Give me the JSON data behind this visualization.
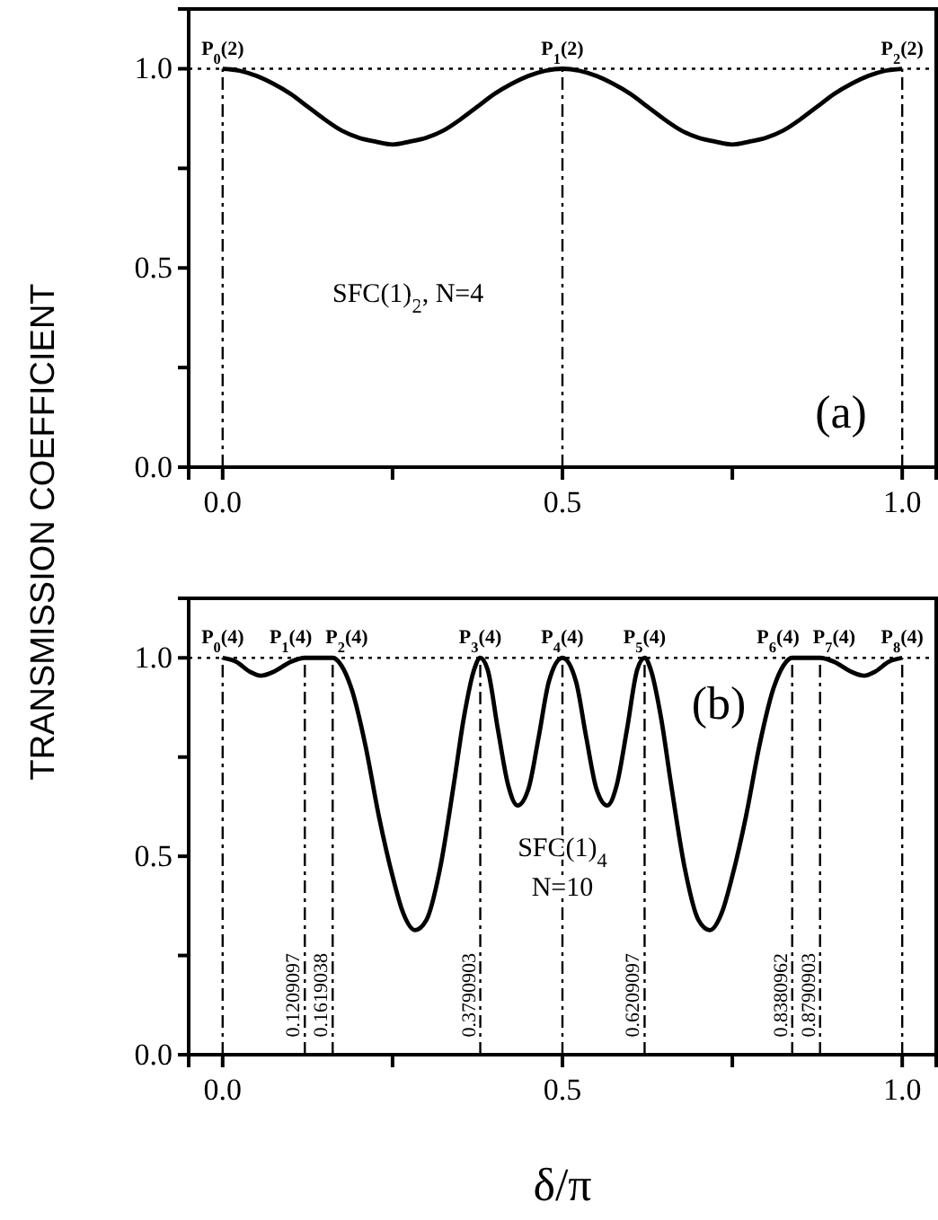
{
  "chart_data": [
    {
      "type": "line",
      "ylabel": "TRANSMISSION COEFFICIENT",
      "xlim": [
        -0.05,
        1.05
      ],
      "ylim": [
        0,
        1.15
      ],
      "xticks": [
        {
          "value": 0,
          "label": "0.0"
        },
        {
          "value": 0.25,
          "label": null
        },
        {
          "value": 0.5,
          "label": "0.5"
        },
        {
          "value": 0.75,
          "label": null
        },
        {
          "value": 1,
          "label": "1.0"
        }
      ],
      "yticks": [
        {
          "value": 0,
          "label": "0.0"
        },
        {
          "value": 0.25,
          "label": null
        },
        {
          "value": 0.5,
          "label": "0.5"
        },
        {
          "value": 0.75,
          "label": null
        },
        {
          "value": 1,
          "label": "1.0"
        }
      ],
      "x": [
        0,
        0.025,
        0.05,
        0.075,
        0.1,
        0.125,
        0.15,
        0.175,
        0.2,
        0.225,
        0.25,
        0.275,
        0.3,
        0.325,
        0.35,
        0.375,
        0.4,
        0.425,
        0.45,
        0.475,
        0.5,
        0.525,
        0.55,
        0.575,
        0.6,
        0.625,
        0.65,
        0.675,
        0.7,
        0.725,
        0.75,
        0.775,
        0.8,
        0.825,
        0.85,
        0.875,
        0.9,
        0.925,
        0.95,
        0.975,
        1
      ],
      "series": [
        {
          "color": "#000000",
          "values": [
            1,
            0.995,
            0.982,
            0.962,
            0.937,
            0.905,
            0.873,
            0.845,
            0.827,
            0.817,
            0.81,
            0.817,
            0.827,
            0.845,
            0.873,
            0.905,
            0.937,
            0.962,
            0.982,
            0.995,
            1,
            0.995,
            0.982,
            0.962,
            0.937,
            0.905,
            0.873,
            0.845,
            0.827,
            0.817,
            0.81,
            0.817,
            0.827,
            0.845,
            0.873,
            0.905,
            0.937,
            0.962,
            0.982,
            0.995,
            1
          ]
        }
      ],
      "ref_lines": [
        {
          "axis": "y",
          "value": 1,
          "line_style": "dotted"
        },
        {
          "axis": "x",
          "value": 0,
          "label": "P$_{0}$(2)",
          "line_style": "dashed"
        },
        {
          "axis": "x",
          "value": 0.5,
          "label": "P$_{1}$(2)",
          "line_style": "dashed"
        },
        {
          "axis": "x",
          "value": 1,
          "label": "P$_{2}$(2)",
          "line_style": "dashed"
        }
      ],
      "annotations": [
        "SFC(1)$_{2}$, N=4",
        "(a)"
      ]
    },
    {
      "type": "line",
      "xlabel": "δ/π",
      "xlim": [
        -0.05,
        1.05
      ],
      "ylim": [
        0,
        1.15
      ],
      "xticks": [
        {
          "value": 0,
          "label": "0.0"
        },
        {
          "value": 0.25,
          "label": null
        },
        {
          "value": 0.5,
          "label": "0.5"
        },
        {
          "value": 0.75,
          "label": null
        },
        {
          "value": 1,
          "label": "1.0"
        }
      ],
      "yticks": [
        {
          "value": 0,
          "label": "0.0"
        },
        {
          "value": 0.25,
          "label": null
        },
        {
          "value": 0.5,
          "label": "0.5"
        },
        {
          "value": 0.75,
          "label": null
        },
        {
          "value": 1,
          "label": "1.0"
        }
      ],
      "x": [
        0,
        0.02,
        0.04,
        0.056,
        0.075,
        0.1,
        0.121,
        0.162,
        0.175,
        0.19,
        0.21,
        0.23,
        0.25,
        0.265,
        0.283,
        0.3,
        0.32,
        0.34,
        0.355,
        0.37,
        0.379,
        0.39,
        0.405,
        0.42,
        0.434,
        0.45,
        0.465,
        0.48,
        0.5,
        0.52,
        0.535,
        0.55,
        0.566,
        0.58,
        0.595,
        0.61,
        0.621,
        0.63,
        0.645,
        0.66,
        0.68,
        0.7,
        0.717,
        0.735,
        0.75,
        0.77,
        0.79,
        0.81,
        0.825,
        0.838,
        0.879,
        0.9,
        0.925,
        0.944,
        0.96,
        0.98,
        1
      ],
      "series": [
        {
          "color": "#000000",
          "values": [
            1,
            0.99,
            0.965,
            0.955,
            0.965,
            0.99,
            1,
            1,
            0.98,
            0.92,
            0.78,
            0.6,
            0.45,
            0.36,
            0.314,
            0.34,
            0.47,
            0.68,
            0.85,
            0.97,
            1,
            0.97,
            0.82,
            0.68,
            0.628,
            0.67,
            0.8,
            0.94,
            1,
            0.94,
            0.8,
            0.67,
            0.628,
            0.68,
            0.82,
            0.97,
            1,
            0.97,
            0.85,
            0.68,
            0.47,
            0.34,
            0.314,
            0.36,
            0.45,
            0.6,
            0.78,
            0.92,
            0.98,
            1,
            1,
            0.99,
            0.965,
            0.955,
            0.965,
            0.99,
            1
          ]
        }
      ],
      "ref_lines": [
        {
          "axis": "y",
          "value": 1,
          "line_style": "dotted"
        },
        {
          "axis": "x",
          "value": 0,
          "label": "P$_{0}$(4)",
          "line_style": "dashed"
        },
        {
          "axis": "x",
          "value": 0.1209097,
          "label": "P$_{1}$(4)",
          "line_style": "dashed"
        },
        {
          "axis": "x",
          "value": 0.1619038,
          "label": "P$_{2}$(4)",
          "line_style": "dashed"
        },
        {
          "axis": "x",
          "value": 0.3790903,
          "label": "P$_{3}$(4)",
          "line_style": "dashed"
        },
        {
          "axis": "x",
          "value": 0.5,
          "label": "P$_{4}$(4)",
          "line_style": "dashed"
        },
        {
          "axis": "x",
          "value": 0.6209097,
          "label": "P$_{5}$(4)",
          "line_style": "dashed"
        },
        {
          "axis": "x",
          "value": 0.8380962,
          "label": "P$_{6}$(4)",
          "line_style": "dashed"
        },
        {
          "axis": "x",
          "value": 0.8790903,
          "label": "P$_{7}$(4)",
          "line_style": "dashed"
        },
        {
          "axis": "x",
          "value": 1,
          "label": "P$_{8}$(4)",
          "line_style": "dashed"
        }
      ],
      "annotations": [
        {
          "text": "0.1209097",
          "x": 0.1209097,
          "y": 0.15
        },
        {
          "text": "0.1619038",
          "x": 0.1619038,
          "y": 0.15
        },
        {
          "text": "0.3790903",
          "x": 0.3790903,
          "y": 0.15
        },
        {
          "text": "0.6209097",
          "x": 0.6209097,
          "y": 0.15
        },
        {
          "text": "0.8380962",
          "x": 0.8380962,
          "y": 0.15
        },
        {
          "text": "0.8790903",
          "x": 0.8790903,
          "y": 0.15
        },
        {
          "text": "SFC(1)$_{4}$",
          "x": 0.5,
          "y": 0.5
        },
        {
          "text": "N=10",
          "x": 0.5,
          "y": 0.4
        },
        "(b)"
      ]
    }
  ]
}
